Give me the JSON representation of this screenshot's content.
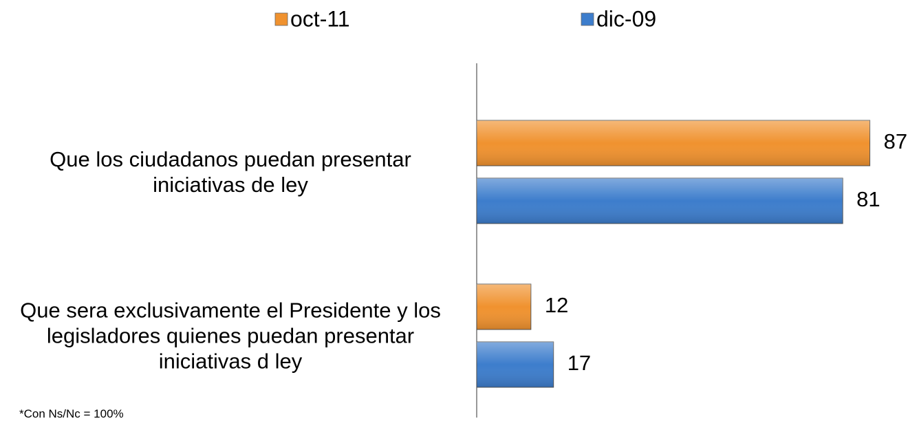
{
  "chart_data": {
    "type": "bar",
    "orientation": "horizontal",
    "categories": [
      "Que los ciudadanos puedan presentar iniciativas de ley",
      "Que sera exclusivamente el Presidente y los legisladores quienes puedan presentar iniciativas d ley"
    ],
    "series": [
      {
        "name": "oct-11",
        "color": "#f0922f",
        "values": [
          87,
          12
        ]
      },
      {
        "name": "dic-09",
        "color": "#3d7dcc",
        "values": [
          81,
          17
        ]
      }
    ],
    "xlim": [
      0,
      100
    ],
    "note": "*Con Ns/Nc = 100%"
  }
}
